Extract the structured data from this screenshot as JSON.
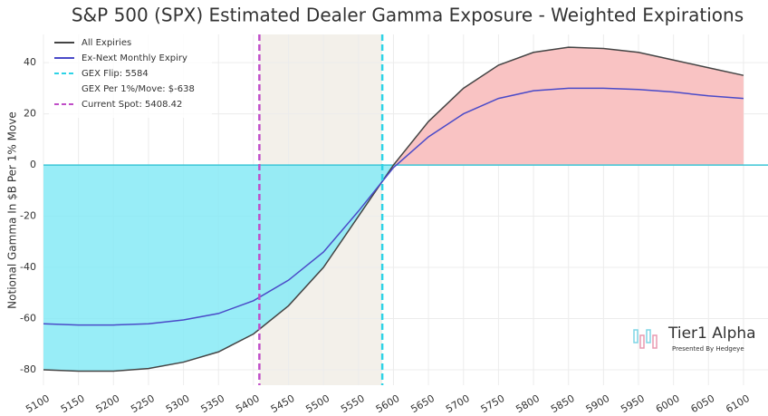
{
  "chart_data": {
    "type": "line",
    "title": "S&P 500 (SPX) Estimated Dealer Gamma Exposure - Weighted Expirations",
    "y_label": "Notional Gamma In $B Per 1% Move",
    "x": [
      5100,
      5150,
      5200,
      5250,
      5300,
      5350,
      5400,
      5450,
      5500,
      5550,
      5600,
      5650,
      5700,
      5750,
      5800,
      5850,
      5900,
      5950,
      6000,
      6050,
      6100
    ],
    "series": [
      {
        "name": "All Expiries",
        "color": "#444444",
        "values": [
          -80,
          -80.5,
          -80.5,
          -79.5,
          -77,
          -73,
          -66,
          -55,
          -40,
          -20,
          0,
          17,
          30,
          39,
          44,
          46,
          45.5,
          44,
          41,
          38,
          35
        ]
      },
      {
        "name": "Ex-Next Monthly Expiry",
        "color": "#4a4ac8",
        "values": [
          -62,
          -62.5,
          -62.5,
          -62,
          -60.5,
          -58,
          -53,
          -45,
          -34,
          -18,
          -1,
          11,
          20,
          26,
          29,
          30,
          30,
          29.5,
          28.5,
          27,
          26
        ]
      }
    ],
    "vlines": [
      {
        "label": "GEX Flip: 5584",
        "value": 5584,
        "color": "#2ed3e6"
      },
      {
        "label": "Current Spot: 5408.42",
        "value": 5408.42,
        "color": "#c04ec8"
      }
    ],
    "gex_label": "GEX Per 1%/Move: $-638",
    "positive_fill": "#f9c3c3",
    "negative_fill": "#86eaf6",
    "zone_fill": "#f3f0ea",
    "xlim": [
      5100,
      6135
    ],
    "ylim": [
      -86,
      51
    ],
    "xticks": [
      5100,
      5150,
      5200,
      5250,
      5300,
      5350,
      5400,
      5450,
      5500,
      5550,
      5600,
      5650,
      5700,
      5750,
      5800,
      5850,
      5900,
      5950,
      6000,
      6050,
      6100
    ],
    "yticks": [
      -80,
      -60,
      -40,
      -20,
      0,
      20,
      40
    ],
    "grid": true,
    "logo": "Tier1 Alpha",
    "logo_sub": "Presented By Hedgeye"
  }
}
